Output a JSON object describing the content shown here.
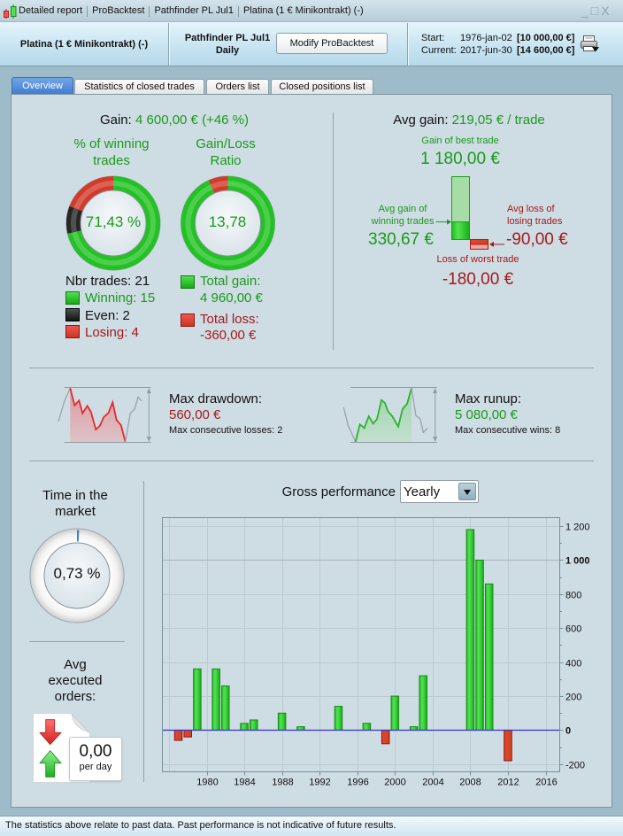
{
  "window": {
    "title_segments": [
      "Detailed report",
      "ProBacktest",
      "Pathfinder PL Jul1",
      "Platina (1 € Minikontrakt) (-)"
    ],
    "controls": {
      "minimize": "_",
      "maximize": "□",
      "close": "X"
    }
  },
  "icons": {
    "app": "candlestick-icon",
    "print": "printer-icon",
    "dropdown": "chevron-down-icon",
    "orders": "buy-sell-arrows-icon"
  },
  "colors": {
    "active_tab": "#4a86d8",
    "positive_text": "#1a9a1a",
    "negative_text": "#a51a1a",
    "time_in_market": "#3d7fd6"
  },
  "header": {
    "instrument": "Platina (1 € Minikontrakt) (-)",
    "system_name": "Pathfinder PL Jul1",
    "timeframe": "Daily",
    "modify_button": "Modify ProBacktest",
    "start_label": "Start:",
    "start_date": "1976-jan-02",
    "start_capital": "[10 000,00 €]",
    "current_label": "Current:",
    "current_date": "2017-jun-30",
    "current_capital": "[14 600,00 €]"
  },
  "tabs": [
    {
      "label": "Overview",
      "active": true
    },
    {
      "label": "Statistics of closed trades",
      "active": false
    },
    {
      "label": "Orders list",
      "active": false
    },
    {
      "label": "Closed positions list",
      "active": false
    }
  ],
  "overview": {
    "gain": {
      "label": "Gain:",
      "value": "4 600,00 € (+46 %)"
    },
    "winning_trades": {
      "title_lines": [
        "% of winning",
        "trades"
      ],
      "center_text": "71,43 %",
      "segment_values": {
        "winning": 15,
        "even": 2,
        "losing": 4
      },
      "segment_colors": {
        "winning": "#22c222",
        "even": "#262626",
        "losing": "#d23a2a"
      }
    },
    "trades_legend": {
      "total": "Nbr trades: 21",
      "winning": "Winning: 15",
      "even": "Even: 2",
      "losing": "Losing: 4"
    },
    "gain_loss_ratio": {
      "title_lines": [
        "Gain/Loss",
        "Ratio"
      ],
      "center_text": "13,78",
      "segment_values": {
        "gain": 4960,
        "loss": 360
      },
      "segment_colors": {
        "gain": "#22c222",
        "loss": "#d23a2a"
      }
    },
    "gain_loss_legend": {
      "total_gain_label": "Total gain:",
      "total_gain_value": "4 960,00 €",
      "total_loss_label": "Total loss:",
      "total_loss_value": "-360,00 €"
    },
    "avg_gain": {
      "label": "Avg gain:",
      "value": "219,05 € / trade"
    },
    "trade_extremes": {
      "best_label": "Gain of best trade",
      "best_text": "1 180,00 €",
      "best": 1180,
      "avg_win_lines": [
        "Avg gain of",
        "winning trades"
      ],
      "avg_win_text": "330,67 €",
      "avg_win": 330.67,
      "avg_loss_lines": [
        "Avg loss of",
        "losing trades"
      ],
      "avg_loss_text": "-90,00 €",
      "avg_loss": -90,
      "worst_label": "Loss of worst trade",
      "worst_text": "-180,00 €",
      "worst": -180
    },
    "drawdown": {
      "title": "Max drawdown:",
      "value": "560,00 €",
      "detail": "Max consecutive losses: 2"
    },
    "runup": {
      "title": "Max runup:",
      "value": "5 080,00 €",
      "detail": "Max consecutive wins: 8"
    },
    "time_in_market": {
      "title_lines": [
        "Time in the",
        "market"
      ],
      "value_text": "0,73 %",
      "fraction": 0.0073
    },
    "avg_executed_orders": {
      "title_lines": [
        "Avg",
        "executed",
        "orders:"
      ],
      "value": "0,00",
      "unit": "per day"
    },
    "gross_performance": {
      "period": "Yearly"
    }
  },
  "chart_data": {
    "type": "bar",
    "title": "Gross performance",
    "xlabel": "",
    "ylabel": "",
    "x": [
      1977,
      1978,
      1979,
      1981,
      1982,
      1984,
      1985,
      1988,
      1990,
      1994,
      1997,
      1999,
      2000,
      2002,
      2003,
      2008,
      2009,
      2010,
      2012
    ],
    "values": [
      -60,
      -40,
      360,
      360,
      260,
      40,
      60,
      100,
      20,
      140,
      40,
      -80,
      200,
      20,
      320,
      1180,
      1000,
      860,
      -180
    ],
    "xticks": [
      1980,
      1984,
      1988,
      1992,
      1996,
      2000,
      2004,
      2008,
      2012,
      2016
    ],
    "xtick_labels": [
      "1980",
      "1984",
      "1988",
      "1992",
      "1996",
      "2000",
      "2004",
      "2008",
      "2012",
      "2016"
    ],
    "x_gridlines": [
      1976,
      1980,
      1984,
      1988,
      1992,
      1996,
      2000,
      2004,
      2008,
      2012,
      2016
    ],
    "yticks": [
      1200,
      1000,
      800,
      600,
      400,
      200,
      0,
      -200
    ],
    "ytick_labels": [
      "1 200",
      "1 000",
      "800",
      "600",
      "400",
      "200",
      "0",
      "-200"
    ],
    "ytick_emphasized": [
      1000,
      0
    ],
    "ytick_minor_step": 100,
    "xlim": [
      1975.3,
      2017.5
    ],
    "ylim": [
      -245,
      1250
    ],
    "grid": true,
    "yaxis_side": "right",
    "positive_color": "#22c222",
    "negative_color": "#d8281c",
    "zero_line_color": "#3535c8"
  },
  "footer": {
    "disclaimer": "The statistics above relate to past data. Past performance is not indicative of future results."
  }
}
